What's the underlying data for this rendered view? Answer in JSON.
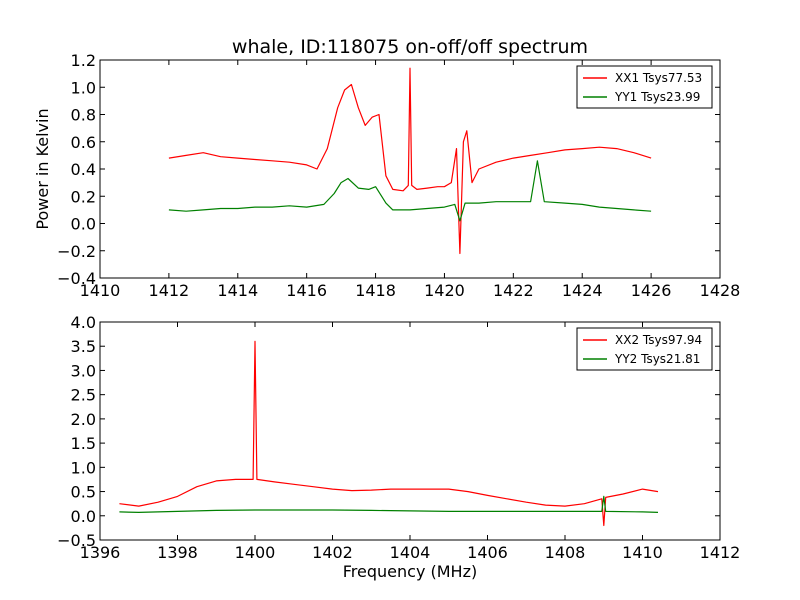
{
  "figure": {
    "title": "whale, ID:118075 on-off/off spectrum"
  },
  "chart_data": [
    {
      "type": "line",
      "title": "whale, ID:118075 on-off/off spectrum",
      "xlabel": "",
      "ylabel": "Power in Kelvin",
      "xlim": [
        1410,
        1428
      ],
      "ylim": [
        -0.4,
        1.2
      ],
      "xticks": [
        "1410",
        "1412",
        "1414",
        "1416",
        "1418",
        "1420",
        "1422",
        "1424",
        "1426",
        "1428"
      ],
      "yticks": [
        "−0.4",
        "−0.2",
        "0.0",
        "0.2",
        "0.4",
        "0.6",
        "0.8",
        "1.0",
        "1.2"
      ],
      "grid": false,
      "legend_position": "top-right",
      "series": [
        {
          "name": "XX1 Tsys77.53",
          "color": "#ff0000",
          "x": [
            1412.0,
            1412.5,
            1413.0,
            1413.5,
            1414.0,
            1414.5,
            1415.0,
            1415.5,
            1416.0,
            1416.3,
            1416.6,
            1416.9,
            1417.1,
            1417.3,
            1417.5,
            1417.7,
            1417.9,
            1418.1,
            1418.3,
            1418.5,
            1418.8,
            1418.95,
            1419.0,
            1419.05,
            1419.2,
            1419.5,
            1419.8,
            1420.0,
            1420.2,
            1420.35,
            1420.45,
            1420.55,
            1420.65,
            1420.8,
            1421.0,
            1421.5,
            1422.0,
            1422.5,
            1423.0,
            1423.5,
            1424.0,
            1424.5,
            1425.0,
            1425.5,
            1426.0
          ],
          "y": [
            0.48,
            0.5,
            0.52,
            0.49,
            0.48,
            0.47,
            0.46,
            0.45,
            0.43,
            0.4,
            0.55,
            0.85,
            0.98,
            1.02,
            0.85,
            0.72,
            0.78,
            0.8,
            0.35,
            0.25,
            0.24,
            0.28,
            1.14,
            0.28,
            0.25,
            0.26,
            0.27,
            0.27,
            0.3,
            0.55,
            -0.22,
            0.6,
            0.68,
            0.3,
            0.4,
            0.45,
            0.48,
            0.5,
            0.52,
            0.54,
            0.55,
            0.56,
            0.55,
            0.52,
            0.48
          ]
        },
        {
          "name": "YY1 Tsys23.99",
          "color": "#008000",
          "x": [
            1412.0,
            1412.5,
            1413.0,
            1413.5,
            1414.0,
            1414.5,
            1415.0,
            1415.5,
            1416.0,
            1416.5,
            1416.8,
            1417.0,
            1417.2,
            1417.5,
            1417.8,
            1418.0,
            1418.3,
            1418.5,
            1419.0,
            1419.5,
            1420.0,
            1420.3,
            1420.45,
            1420.6,
            1421.0,
            1421.5,
            1422.0,
            1422.5,
            1422.7,
            1422.9,
            1423.5,
            1424.0,
            1424.5,
            1425.0,
            1425.5,
            1426.0
          ],
          "y": [
            0.1,
            0.09,
            0.1,
            0.11,
            0.11,
            0.12,
            0.12,
            0.13,
            0.12,
            0.14,
            0.22,
            0.3,
            0.33,
            0.26,
            0.25,
            0.27,
            0.15,
            0.1,
            0.1,
            0.11,
            0.12,
            0.14,
            0.02,
            0.15,
            0.15,
            0.16,
            0.16,
            0.16,
            0.46,
            0.16,
            0.15,
            0.14,
            0.12,
            0.11,
            0.1,
            0.09
          ]
        }
      ]
    },
    {
      "type": "line",
      "title": "",
      "xlabel": "Frequency (MHz)",
      "ylabel": "",
      "xlim": [
        1396,
        1412
      ],
      "ylim": [
        -0.5,
        4.0
      ],
      "xticks": [
        "1396",
        "1398",
        "1400",
        "1402",
        "1404",
        "1406",
        "1408",
        "1410",
        "1412"
      ],
      "yticks": [
        "−0.5",
        "0.0",
        "0.5",
        "1.0",
        "1.5",
        "2.0",
        "2.5",
        "3.0",
        "3.5",
        "4.0"
      ],
      "grid": false,
      "legend_position": "top-right",
      "series": [
        {
          "name": "XX2 Tsys97.94",
          "color": "#ff0000",
          "x": [
            1396.5,
            1397.0,
            1397.5,
            1398.0,
            1398.5,
            1399.0,
            1399.5,
            1399.95,
            1400.0,
            1400.05,
            1400.5,
            1401.0,
            1401.5,
            1402.0,
            1402.5,
            1403.0,
            1403.5,
            1404.0,
            1404.5,
            1405.0,
            1405.5,
            1406.0,
            1406.5,
            1407.0,
            1407.5,
            1408.0,
            1408.5,
            1408.95,
            1409.0,
            1409.05,
            1409.5,
            1410.0,
            1410.4
          ],
          "y": [
            0.25,
            0.2,
            0.28,
            0.4,
            0.6,
            0.72,
            0.75,
            0.75,
            3.6,
            0.75,
            0.7,
            0.65,
            0.6,
            0.55,
            0.52,
            0.53,
            0.55,
            0.55,
            0.55,
            0.55,
            0.5,
            0.42,
            0.35,
            0.28,
            0.22,
            0.2,
            0.25,
            0.35,
            -0.2,
            0.38,
            0.45,
            0.55,
            0.5
          ]
        },
        {
          "name": "YY2 Tsys21.81",
          "color": "#008000",
          "x": [
            1396.5,
            1397.0,
            1398.0,
            1399.0,
            1400.0,
            1401.0,
            1402.0,
            1403.0,
            1404.0,
            1405.0,
            1406.0,
            1407.0,
            1408.0,
            1408.95,
            1409.0,
            1409.05,
            1410.0,
            1410.4
          ],
          "y": [
            0.08,
            0.07,
            0.09,
            0.11,
            0.12,
            0.12,
            0.12,
            0.11,
            0.1,
            0.09,
            0.09,
            0.09,
            0.09,
            0.09,
            0.4,
            0.09,
            0.08,
            0.07
          ]
        }
      ]
    }
  ]
}
